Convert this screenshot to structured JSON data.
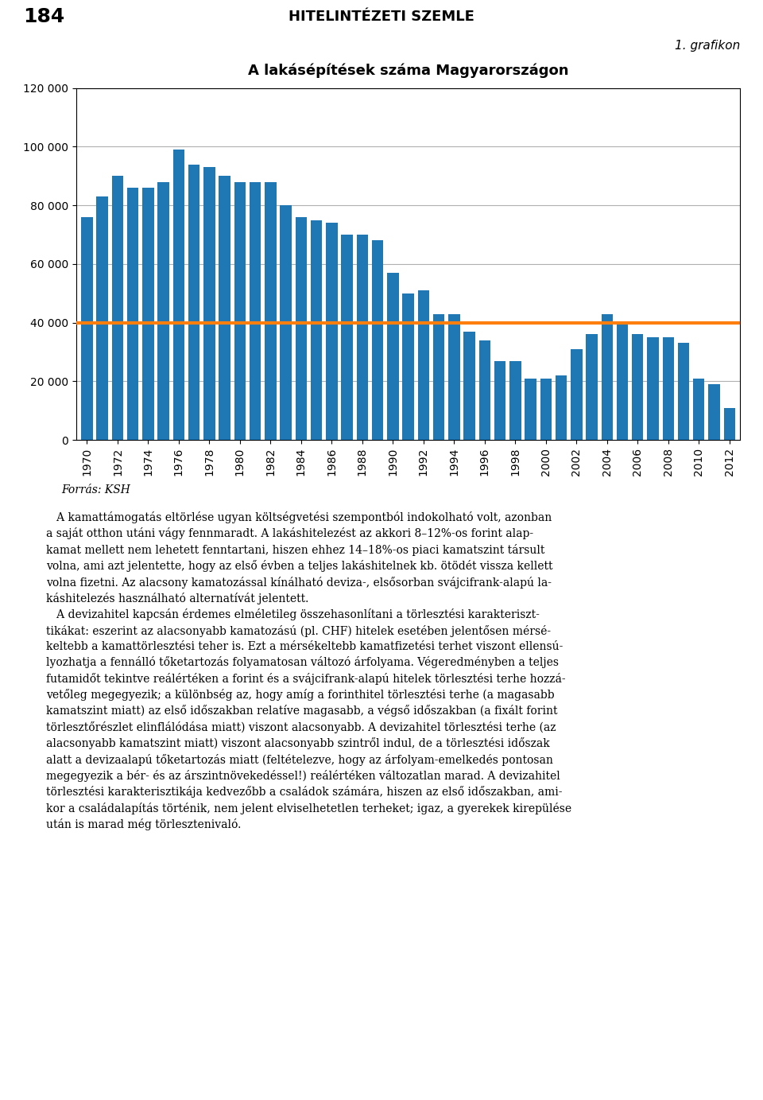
{
  "chart_data": {
    "type": "bar",
    "title": "A lakásépítések száma Magyarországon",
    "subtitle": "1. grafikon",
    "annotations": [
      "184",
      "HITELINTÉZETI SZEMLE",
      "Forrás: KSH",
      "   A kamattámogatás eltörlése ugyan költségvetési szempontból indokolható volt, azonban\na saját otthon utáni vágy fennmaradt. A lakáshitelezést az akkori 8–12%-os forint alap-\nkamat mellett nem lehetett fenntartani, hiszen ehhez 14–18%-os piaci kamatszint társult\nvolna, ami azt jelentette, hogy az első évben a teljes lakáshitelnek kb. ötödét vissza kellett\nvolna fizetni. Az alacsony kamatozással kínálható deviza-, elsősorban svájcifrank-alapú la-\nkáshitelezés használható alternatívát jelentett.\n   A devizahitel kapcsán érdemes elméletileg összehasonlítani a törlesztési karakteriszt-\ntikákat: eszerint az alacsonyabb kamatozású (pl. CHF) hitelek esetében jelentősen mérsé-\nkeltebb a kamattörlesztési teher is. Ezt a mérsékeltebb kamatfizetési terhet viszont ellensú-\nlyozhatja a fennálló tőketartozás folyamatosan változó árfolyama. Végeredményben a teljes\nfutamidőt tekintve reálértéken a forint és a svájcifrank-alapú hitelek törlesztési terhe hozzá-\nvetőleg megegyezik; a különbség az, hogy amíg a forinthitel törlesztési terhe (a magasabb\nkamatszint miatt) az első időszakban relatíve magasabb, a végső időszakban (a fixált forint\ntörlesztőrészlet elinflálódása miatt) viszont alacsonyabb. A devizahitel törlesztési terhe (az\nalacsonyabb kamatszint miatt) viszont alacsonyabb szintről indul, de a törlesztési időszak\nalatt a devizaalapú tőketartozás miatt (feltételezve, hogy az árfolyam-emelkedés pontosan\nmegegyezik a bér- és az árszintnövekedéssel!) reálértéken változatlan marad. A devizahitel\ntörlesztési karakterisztikája kedvezőbb a családok számára, hiszen az első időszakban, ami-\nkor a családalapítás történik, nem jelent elviselhetetlen terheket; igaz, a gyerekek kirepülése\nután is marad még törlesztenivaló."
    ],
    "x": [
      1970,
      1971,
      1972,
      1973,
      1974,
      1975,
      1976,
      1977,
      1978,
      1979,
      1980,
      1981,
      1982,
      1983,
      1984,
      1985,
      1986,
      1987,
      1988,
      1989,
      1990,
      1991,
      1992,
      1993,
      1994,
      1995,
      1996,
      1997,
      1998,
      1999,
      2000,
      2001,
      2002,
      2003,
      2004,
      2005,
      2006,
      2007,
      2008,
      2009,
      2010,
      2011,
      2012
    ],
    "values": [
      76000,
      83000,
      90000,
      86000,
      86000,
      88000,
      99000,
      94000,
      93000,
      90000,
      88000,
      88000,
      88000,
      80000,
      76000,
      75000,
      74000,
      70000,
      70000,
      68000,
      57000,
      50000,
      51000,
      43000,
      43000,
      37000,
      34000,
      27000,
      27000,
      21000,
      21000,
      22000,
      31000,
      36000,
      43000,
      40000,
      36000,
      35000,
      35000,
      33000,
      21000,
      19000,
      11000
    ],
    "xlim": [
      1969.3,
      2012.7
    ],
    "xticks": [
      1970,
      1972,
      1974,
      1976,
      1978,
      1980,
      1982,
      1984,
      1986,
      1988,
      1990,
      1992,
      1994,
      1996,
      1998,
      2000,
      2002,
      2004,
      2006,
      2008,
      2010,
      2012
    ],
    "ylim": [
      0,
      120000
    ],
    "yticks": [
      0,
      {
        "value": 20000,
        "label": "20 000"
      },
      {
        "value": 40000,
        "label": "40 000"
      },
      {
        "value": 60000,
        "label": "60 000"
      },
      {
        "value": 80000,
        "label": "80 000"
      },
      {
        "value": 100000,
        "label": "100 000"
      },
      {
        "value": 120000,
        "label": "120 000"
      }
    ],
    "reference_line": 40000,
    "grid": true
  }
}
